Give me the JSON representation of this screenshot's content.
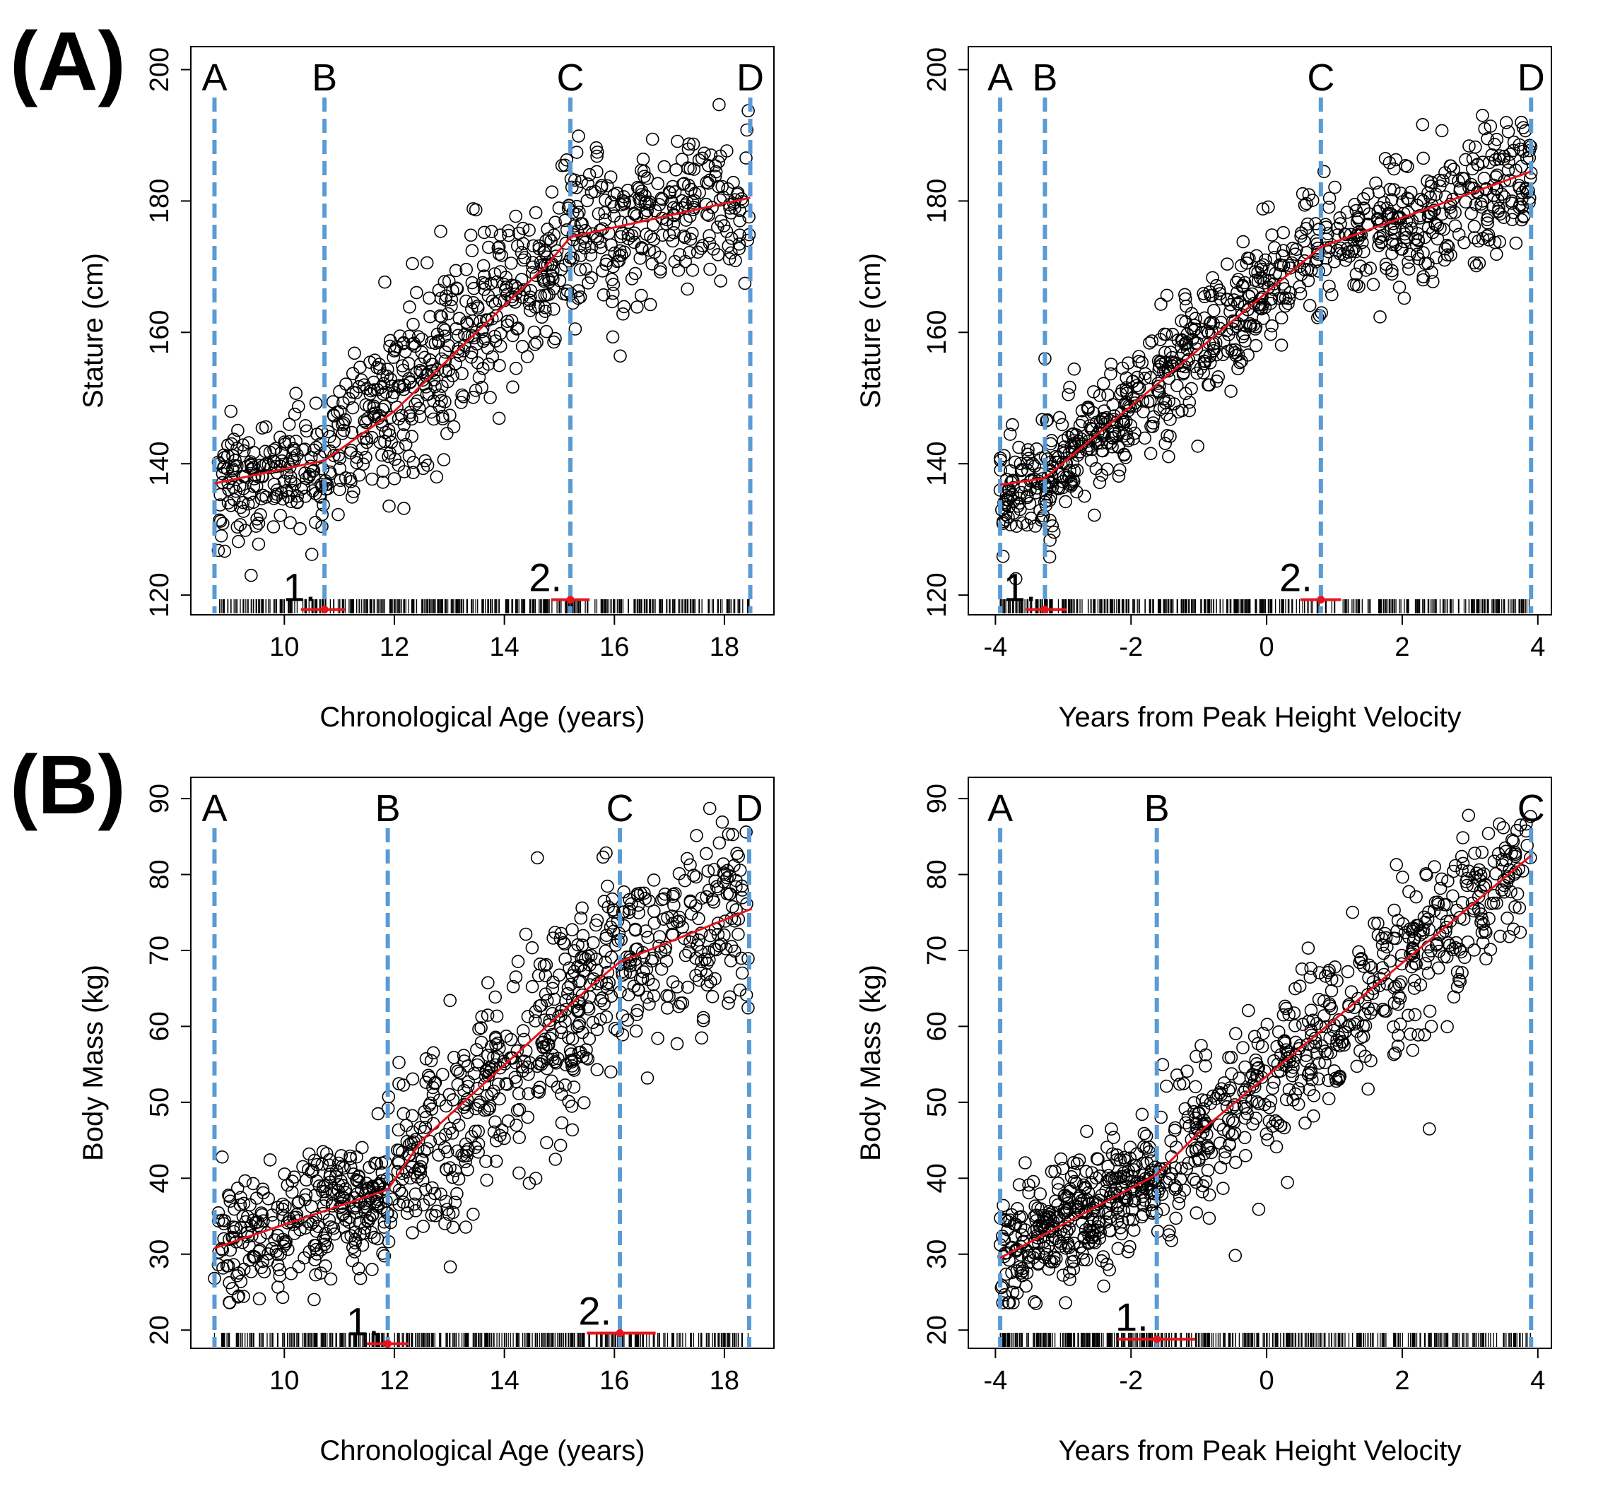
{
  "panel_labels": {
    "a": "(A)",
    "b": "(B)"
  },
  "colors": {
    "points": "#000000",
    "fit_line": "#e8141b",
    "boundary": "#5b9bd5",
    "rug": "#000000",
    "axes": "#000000"
  },
  "chart_data": [
    {
      "type": "scatter",
      "title": "",
      "xlabel": "Chronological Age (years)",
      "ylabel": "Stature (cm)",
      "xlim": [
        8.3,
        18.9
      ],
      "ylim": [
        117,
        203.5
      ],
      "xticks": [
        10,
        12,
        14,
        16,
        18
      ],
      "yticks": [
        120,
        140,
        160,
        180,
        200
      ],
      "boundaries": [
        {
          "label": "A",
          "x": 8.73
        },
        {
          "label": "B",
          "x": 10.73
        },
        {
          "label": "C",
          "x": 15.2
        },
        {
          "label": "D",
          "x": 18.47
        }
      ],
      "fit_line": {
        "x": [
          8.73,
          10.73,
          12.0,
          14.8,
          15.2,
          18.47
        ],
        "y": [
          137,
          140.5,
          148,
          170.5,
          174.5,
          180.5
        ]
      },
      "breakpoints": [
        {
          "label": "1.",
          "x": 10.73,
          "ci": [
            10.3,
            11.1
          ],
          "y": 117.8
        },
        {
          "label": "2.",
          "x": 15.2,
          "ci": [
            14.85,
            15.55
          ],
          "y": 119.3
        }
      ],
      "cloud": [
        {
          "x0": 8.8,
          "x1": 10.7,
          "y0": 136,
          "y1": 140.5,
          "sd": 4.5,
          "n": 170
        },
        {
          "x0": 10.7,
          "x1": 14.8,
          "y0": 140.5,
          "y1": 170.5,
          "sd": 7,
          "n": 400
        },
        {
          "x0": 14.8,
          "x1": 15.25,
          "y0": 170.5,
          "y1": 174.5,
          "sd": 7,
          "n": 45
        },
        {
          "x0": 15.25,
          "x1": 18.45,
          "y0": 174.5,
          "y1": 180.5,
          "sd": 6,
          "n": 260
        }
      ],
      "extra_points": [
        {
          "x": 8.8,
          "y": 126.8
        },
        {
          "x": 10.5,
          "y": 126.2
        },
        {
          "x": 15.97,
          "y": 159.3
        }
      ]
    },
    {
      "type": "scatter",
      "title": "",
      "xlabel": "Years from Peak Height Velocity",
      "ylabel": "Stature (cm)",
      "xlim": [
        -4.4,
        4.2
      ],
      "ylim": [
        117,
        203.5
      ],
      "xticks": [
        -4,
        -2,
        0,
        2,
        4
      ],
      "yticks": [
        120,
        140,
        160,
        180,
        200
      ],
      "boundaries": [
        {
          "label": "A",
          "x": -3.93
        },
        {
          "label": "B",
          "x": -3.27
        },
        {
          "label": "C",
          "x": 0.8
        },
        {
          "label": "D",
          "x": 3.9
        }
      ],
      "fit_line": {
        "x": [
          -3.93,
          -3.27,
          0.8,
          3.9
        ],
        "y": [
          136.8,
          137.8,
          173,
          184.5
        ]
      },
      "breakpoints": [
        {
          "label": "1.",
          "x": -3.27,
          "ci": [
            -3.55,
            -2.95
          ],
          "y": 117.8
        },
        {
          "label": "2.",
          "x": 0.8,
          "ci": [
            0.5,
            1.1
          ],
          "y": 119.3
        }
      ],
      "cloud": [
        {
          "x0": -3.93,
          "x1": -3.27,
          "y0": 136.5,
          "y1": 138,
          "sd": 4,
          "n": 80
        },
        {
          "x0": -3.27,
          "x1": 0.8,
          "y0": 138,
          "y1": 173,
          "sd": 4.5,
          "n": 480
        },
        {
          "x0": 0.8,
          "x1": 3.9,
          "y0": 173,
          "y1": 184.5,
          "sd": 5,
          "n": 320
        }
      ],
      "extra_points": [
        {
          "x": -3.27,
          "y": 156
        },
        {
          "x": -3.2,
          "y": 125.8
        },
        {
          "x": -3.7,
          "y": 122.5
        }
      ]
    },
    {
      "type": "scatter",
      "title": "",
      "xlabel": "Chronological Age (years)",
      "ylabel": "Body Mass (kg)",
      "xlim": [
        8.3,
        18.9
      ],
      "ylim": [
        17.6,
        92.8
      ],
      "xticks": [
        10,
        12,
        14,
        16,
        18
      ],
      "yticks": [
        20,
        30,
        40,
        50,
        60,
        70,
        80,
        90
      ],
      "boundaries": [
        {
          "label": "A",
          "x": 8.73
        },
        {
          "label": "B",
          "x": 11.88
        },
        {
          "label": "C",
          "x": 16.1
        },
        {
          "label": "D",
          "x": 18.45
        }
      ],
      "fit_line": {
        "x": [
          8.73,
          11.88,
          12.5,
          15.6,
          16.1,
          18.5
        ],
        "y": [
          30.8,
          38.5,
          45,
          65.5,
          68.5,
          75.5
        ]
      },
      "breakpoints": [
        {
          "label": "1.",
          "x": 11.88,
          "ci": [
            11.5,
            12.25
          ],
          "y": 18.2
        },
        {
          "label": "2.",
          "x": 16.1,
          "ci": [
            15.5,
            16.75
          ],
          "y": 19.6
        }
      ],
      "cloud": [
        {
          "x0": 8.8,
          "x1": 11.88,
          "y0": 31,
          "y1": 38.5,
          "sd": 3.8,
          "n": 300
        },
        {
          "x0": 11.88,
          "x1": 16.1,
          "y0": 38.5,
          "y1": 68.5,
          "sd": 6.5,
          "n": 420
        },
        {
          "x0": 16.1,
          "x1": 18.45,
          "y0": 68.5,
          "y1": 75.5,
          "sd": 6,
          "n": 200
        }
      ],
      "extra_points": [
        {
          "x": 8.73,
          "y": 26.8
        },
        {
          "x": 9.17,
          "y": 24.5
        },
        {
          "x": 14.6,
          "y": 82.2
        },
        {
          "x": 16.6,
          "y": 53.2
        }
      ]
    },
    {
      "type": "scatter",
      "title": "",
      "xlabel": "Years from Peak Height Velocity",
      "ylabel": "Body Mass (kg)",
      "xlim": [
        -4.4,
        4.2
      ],
      "ylim": [
        17.6,
        92.8
      ],
      "xticks": [
        -4,
        -2,
        0,
        2,
        4
      ],
      "yticks": [
        20,
        30,
        40,
        50,
        60,
        70,
        80,
        90
      ],
      "boundaries": [
        {
          "label": "A",
          "x": -3.93
        },
        {
          "label": "B",
          "x": -1.62
        },
        {
          "label": "C",
          "x": 3.9
        }
      ],
      "fit_line": {
        "x": [
          -3.93,
          -1.62,
          -1.0,
          3.9
        ],
        "y": [
          29.5,
          40.5,
          46,
          82.5
        ]
      },
      "breakpoints": [
        {
          "label": "1.",
          "x": -1.62,
          "ci": [
            -2.2,
            -1.05
          ],
          "y": 18.8
        }
      ],
      "cloud": [
        {
          "x0": -3.93,
          "x1": -1.62,
          "y0": 30,
          "y1": 40.5,
          "sd": 3.8,
          "n": 360
        },
        {
          "x0": -1.62,
          "x1": 3.9,
          "y0": 40.5,
          "y1": 82,
          "sd": 5,
          "n": 560
        }
      ],
      "extra_points": [
        {
          "x": -3.9,
          "y": 25.8
        },
        {
          "x": -3.4,
          "y": 23.5
        },
        {
          "x": 2.4,
          "y": 46.5
        }
      ]
    }
  ]
}
